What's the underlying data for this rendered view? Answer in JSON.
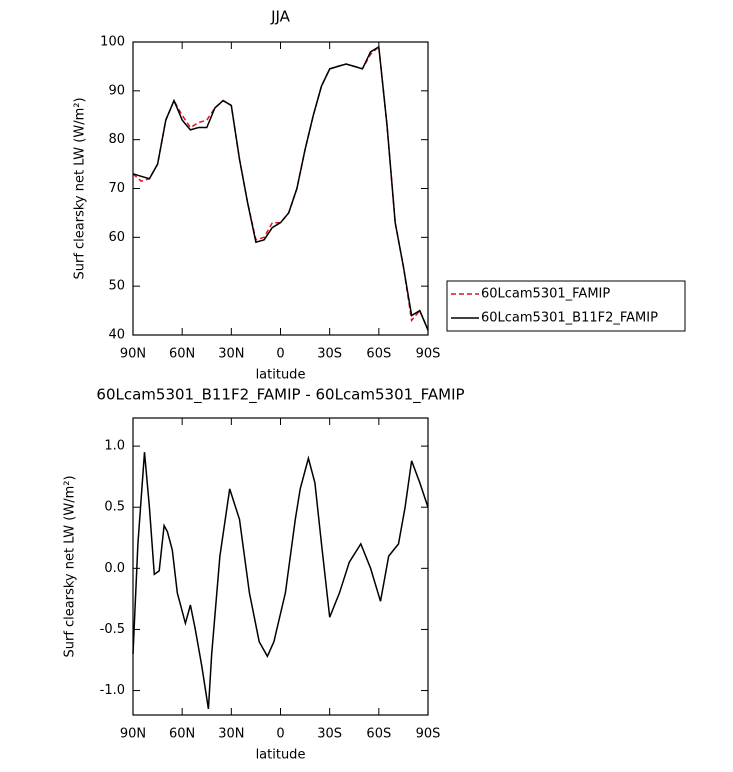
{
  "chart_data": [
    {
      "type": "line",
      "title": "JJA",
      "x_label": "latitude",
      "y_label": "Surf clearsky net LW (W/m²)",
      "x": [
        90,
        85,
        80,
        75,
        70,
        65,
        60,
        55,
        50,
        45,
        40,
        35,
        30,
        25,
        20,
        15,
        10,
        5,
        0,
        -5,
        -10,
        -15,
        -20,
        -25,
        -30,
        -35,
        -40,
        -45,
        -50,
        -55,
        -60,
        -65,
        -70,
        -75,
        -80,
        -85,
        -90
      ],
      "series": [
        {
          "name": "60Lcam5301_FAMIP",
          "color": "#e0141e",
          "linestyle": "dashed",
          "values": [
            73,
            71.5,
            72,
            75,
            84,
            88,
            85,
            82.5,
            83.5,
            84,
            86.5,
            88,
            87,
            76,
            67,
            59.5,
            60,
            63,
            63,
            65,
            70,
            78,
            85,
            91,
            94.5,
            95,
            95.5,
            95,
            94.5,
            97.5,
            99,
            83,
            63,
            54,
            43,
            45,
            41
          ]
        },
        {
          "name": "60Lcam5301_B11F2_FAMIP",
          "color": "#000000",
          "linestyle": "solid",
          "values": [
            73,
            72.5,
            72,
            75,
            84,
            88,
            84,
            82,
            82.5,
            82.5,
            86.5,
            88,
            87,
            76,
            67,
            59,
            59.5,
            62,
            63,
            65,
            70,
            78,
            85,
            91,
            94.5,
            95,
            95.5,
            95,
            94.5,
            98,
            99,
            83,
            63,
            54,
            44,
            45,
            41
          ]
        }
      ],
      "xlim": [
        90,
        -90
      ],
      "xticks": [
        {
          "value": 90,
          "label": "90N"
        },
        {
          "value": 60,
          "label": "60N"
        },
        {
          "value": 30,
          "label": "30N"
        },
        0,
        {
          "value": -30,
          "label": "30S"
        },
        {
          "value": -60,
          "label": "60S"
        },
        {
          "value": -90,
          "label": "90S"
        }
      ],
      "ylim": [
        40,
        100
      ],
      "yticks": [
        40,
        50,
        60,
        70,
        80,
        90,
        100
      ],
      "legend": "right"
    },
    {
      "type": "line",
      "title": "60Lcam5301_B11F2_FAMIP - 60Lcam5301_FAMIP",
      "x_label": "latitude",
      "y_label": "Surf clearsky net LW (W/m²)",
      "x": [
        90,
        87,
        83,
        80,
        77,
        74,
        71,
        69,
        66,
        63,
        58,
        55,
        52,
        48,
        44,
        42,
        37,
        31,
        25,
        19,
        13,
        8,
        4,
        -3,
        -9,
        -12,
        -17,
        -21,
        -25,
        -30,
        -36,
        -42,
        -49,
        -55,
        -61,
        -66,
        -72,
        -76,
        -80,
        -85,
        -90
      ],
      "series": [
        {
          "color": "#000000",
          "linestyle": "solid",
          "values": [
            -0.7,
            0.2,
            0.95,
            0.5,
            -0.05,
            -0.02,
            0.35,
            0.3,
            0.15,
            -0.2,
            -0.45,
            -0.3,
            -0.5,
            -0.8,
            -1.15,
            -0.7,
            0.1,
            0.65,
            0.4,
            -0.2,
            -0.6,
            -0.72,
            -0.6,
            -0.2,
            0.4,
            0.65,
            0.9,
            0.7,
            0.2,
            -0.4,
            -0.2,
            0.05,
            0.2,
            0.0,
            -0.27,
            0.1,
            0.2,
            0.5,
            0.88,
            0.7,
            0.5
          ]
        }
      ],
      "xlim": [
        90,
        -90
      ],
      "xticks": [
        {
          "value": 90,
          "label": "90N"
        },
        {
          "value": 60,
          "label": "60N"
        },
        {
          "value": 30,
          "label": "30N"
        },
        0,
        {
          "value": -30,
          "label": "30S"
        },
        {
          "value": -60,
          "label": "60S"
        },
        {
          "value": -90,
          "label": "90S"
        }
      ],
      "ylim": [
        -1.2,
        1.23
      ],
      "yticks": [
        {
          "value": -1.0,
          "label": "-1.0"
        },
        -0.5,
        {
          "value": 0.0,
          "label": "0.0"
        },
        0.5,
        {
          "value": 1.0,
          "label": "1.0"
        }
      ]
    }
  ]
}
